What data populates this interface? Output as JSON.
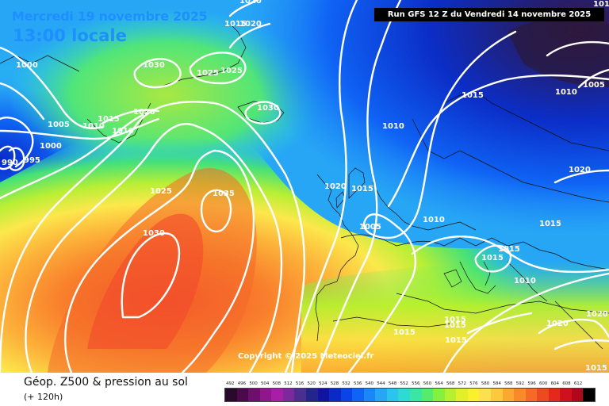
{
  "header": {
    "valid_date": "Mercredi 19 novembre 2025",
    "local_time": "13:00 locale",
    "run_label": "Run GFS 12 Z du Vendredi 14 novembre 2025"
  },
  "map": {
    "copyright": "Copyright © 2025 Meteociel.fr",
    "pressure_labels": [
      {
        "id": "p1",
        "text": "1020"
      },
      {
        "id": "p2",
        "text": "1015"
      },
      {
        "id": "p3",
        "text": "1020"
      },
      {
        "id": "p4",
        "text": "1000"
      },
      {
        "id": "p5",
        "text": "1030"
      },
      {
        "id": "p6",
        "text": "1025"
      },
      {
        "id": "p7",
        "text": "1025"
      },
      {
        "id": "p8",
        "text": "1020"
      },
      {
        "id": "p9",
        "text": "1015"
      },
      {
        "id": "p10",
        "text": "1010"
      },
      {
        "id": "p11",
        "text": "1010"
      },
      {
        "id": "p12",
        "text": "1005"
      },
      {
        "id": "p13",
        "text": "1000"
      },
      {
        "id": "p14",
        "text": "995"
      },
      {
        "id": "p15",
        "text": "990"
      },
      {
        "id": "p16",
        "text": "1030"
      },
      {
        "id": "p17",
        "text": "1025"
      },
      {
        "id": "p18",
        "text": "1035"
      },
      {
        "id": "p19",
        "text": "1030"
      },
      {
        "id": "p20",
        "text": "1015"
      },
      {
        "id": "p21",
        "text": "1010"
      },
      {
        "id": "p22",
        "text": "1020"
      },
      {
        "id": "p23",
        "text": "1015"
      },
      {
        "id": "p24",
        "text": "1005"
      },
      {
        "id": "p25",
        "text": "1010"
      },
      {
        "id": "p26",
        "text": "1015"
      },
      {
        "id": "p27",
        "text": "1015"
      },
      {
        "id": "p28",
        "text": "1015"
      },
      {
        "id": "p29",
        "text": "1010"
      },
      {
        "id": "p30",
        "text": "1020"
      },
      {
        "id": "p31",
        "text": "1015"
      },
      {
        "id": "p32",
        "text": "1010"
      },
      {
        "id": "p33",
        "text": "1005"
      },
      {
        "id": "p34",
        "text": "1020"
      },
      {
        "id": "p35",
        "text": "1015"
      },
      {
        "id": "p36",
        "text": "1020"
      },
      {
        "id": "p37",
        "text": "1015"
      },
      {
        "id": "p38",
        "text": "1015"
      },
      {
        "id": "p39",
        "text": "1015"
      },
      {
        "id": "p40",
        "text": "1015"
      }
    ]
  },
  "footer": {
    "product_title": "Géop. Z500 & pression au sol",
    "lead_time": "(+ 120h)"
  },
  "legend": {
    "ticks": [
      "492",
      "496",
      "500",
      "504",
      "508",
      "512",
      "516",
      "520",
      "524",
      "528",
      "532",
      "536",
      "540",
      "544",
      "548",
      "552",
      "556",
      "560",
      "564",
      "568",
      "572",
      "576",
      "580",
      "584",
      "588",
      "592",
      "596",
      "600",
      "604",
      "608",
      "612"
    ],
    "colors": [
      "#2a0a2a",
      "#4b0a4b",
      "#6e0f6e",
      "#8e178e",
      "#a61fa6",
      "#7a2a9a",
      "#4b2f8f",
      "#24258a",
      "#1014a0",
      "#0a2ac8",
      "#0a44e8",
      "#0f63f5",
      "#1b86f8",
      "#27a6f5",
      "#2bc4ec",
      "#2edbd2",
      "#3ae6a4",
      "#55ec6b",
      "#86f040",
      "#b7f02e",
      "#e2f02a",
      "#fbf02c",
      "#fde050",
      "#fcc83c",
      "#fba82f",
      "#f98a2a",
      "#f56a26",
      "#ee4a22",
      "#e5281c",
      "#d0101a",
      "#b0081a",
      "#000000"
    ]
  },
  "colors": {
    "frame": "#ffffff",
    "text_accent": "#1e8fff",
    "isobar": "#ffffff"
  }
}
